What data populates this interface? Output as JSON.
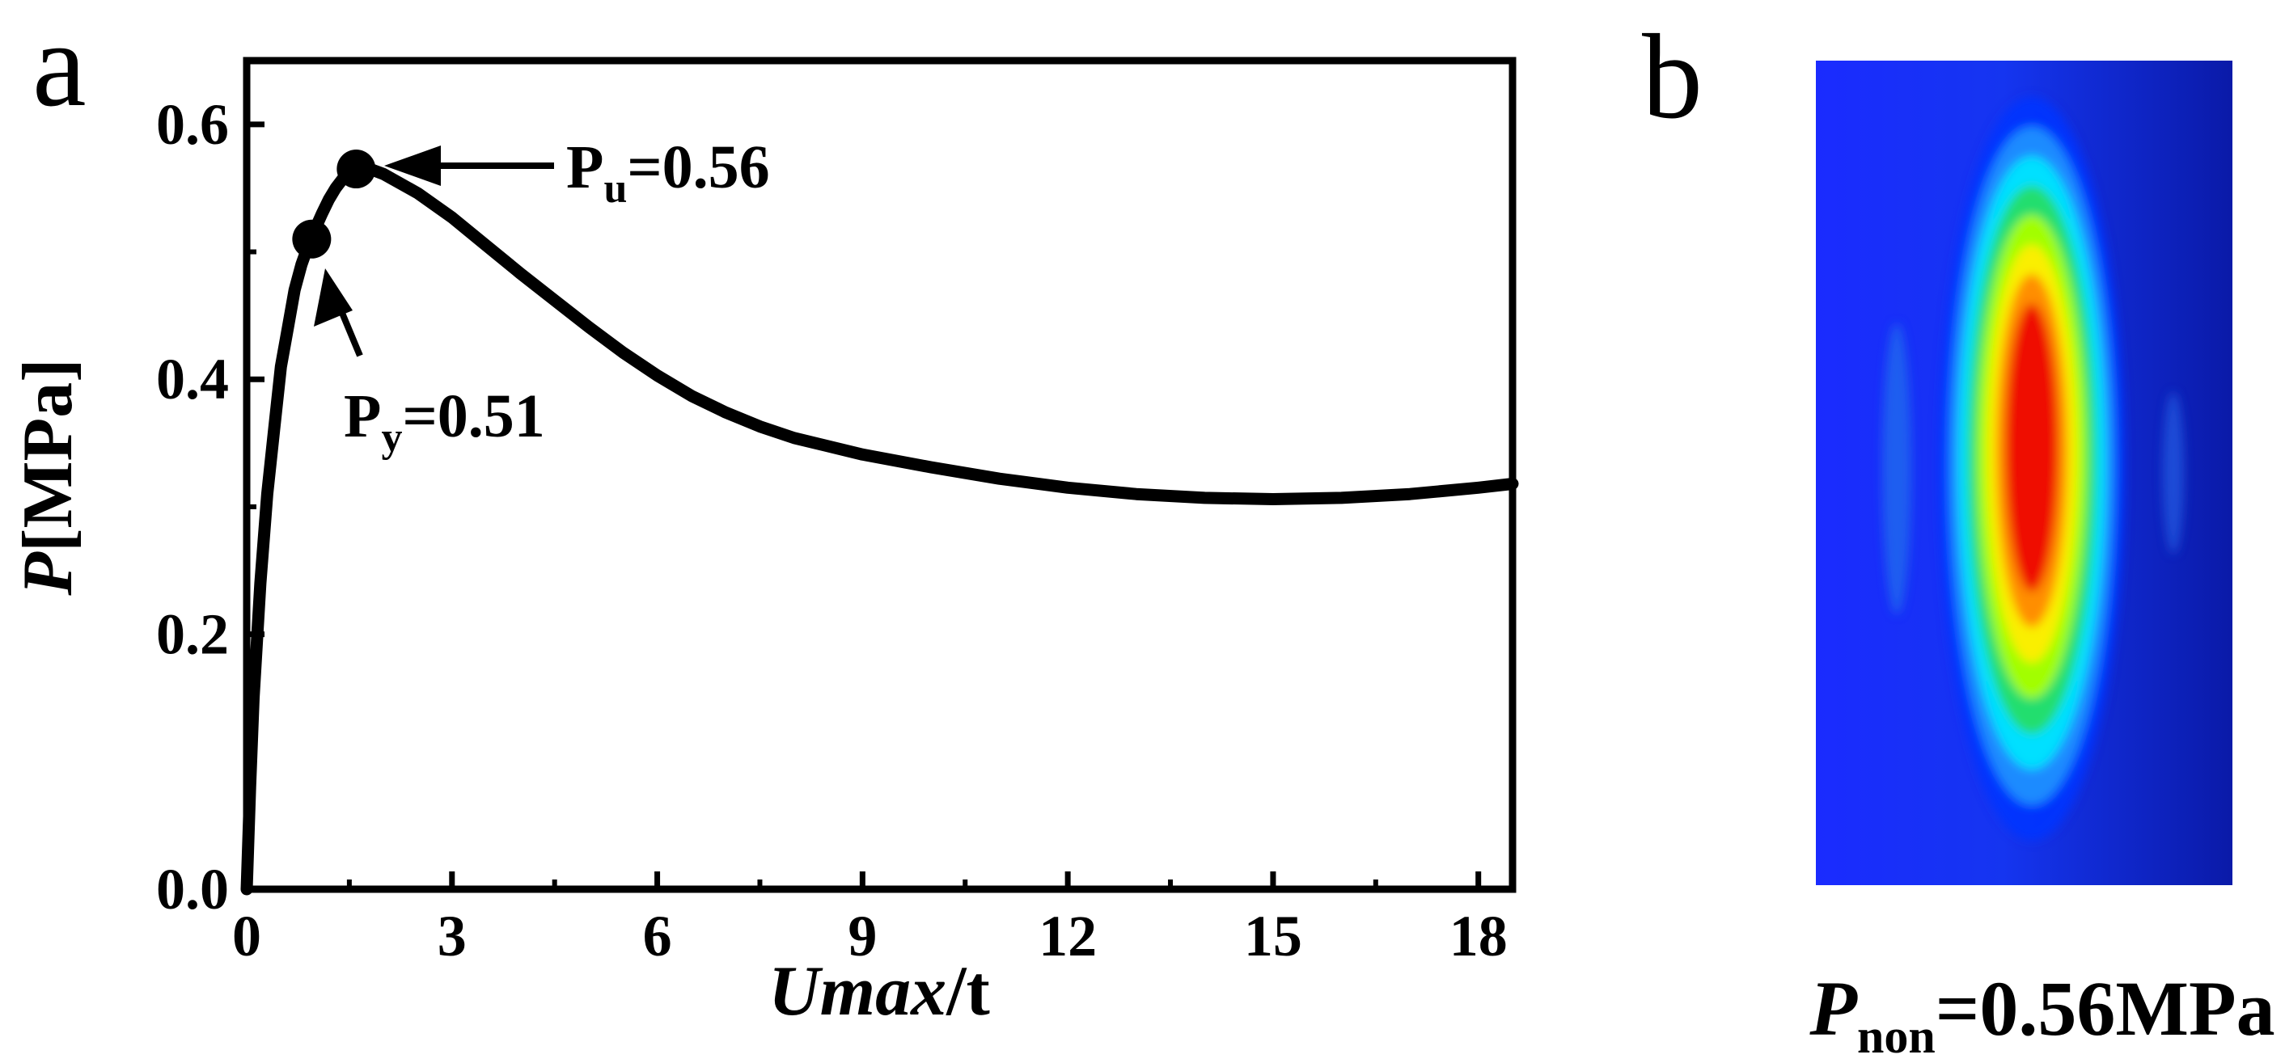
{
  "panel_a_letter": "a",
  "panel_b_letter": "b",
  "chart_data": [
    {
      "type": "line",
      "title": "",
      "xlabel": {
        "italic": "Umax",
        "rest": "/t"
      },
      "ylabel": {
        "italic": "P",
        "rest": "[MPa]"
      },
      "xlim": [
        0,
        18.5
      ],
      "ylim": [
        0,
        0.65
      ],
      "xticks": [
        0,
        3,
        6,
        9,
        12,
        15,
        18
      ],
      "xtick_labels": [
        "0",
        "3",
        "6",
        "9",
        "12",
        "15",
        "18"
      ],
      "yticks": [
        0,
        0.2,
        0.4,
        0.6
      ],
      "ytick_labels": [
        "0.0",
        "0.2",
        "0.4",
        "0.6"
      ],
      "grid": false,
      "series": [
        {
          "color": "#000000",
          "points": [
            [
              0.0,
              0.0
            ],
            [
              0.05,
              0.08
            ],
            [
              0.1,
              0.15
            ],
            [
              0.2,
              0.24
            ],
            [
              0.3,
              0.31
            ],
            [
              0.4,
              0.36
            ],
            [
              0.5,
              0.41
            ],
            [
              0.6,
              0.44
            ],
            [
              0.7,
              0.47
            ],
            [
              0.8,
              0.49
            ],
            [
              0.9,
              0.505
            ],
            [
              1.0,
              0.518
            ],
            [
              1.1,
              0.53
            ],
            [
              1.2,
              0.541
            ],
            [
              1.3,
              0.55
            ],
            [
              1.4,
              0.557
            ],
            [
              1.5,
              0.562
            ],
            [
              1.6,
              0.565
            ],
            [
              1.7,
              0.566
            ],
            [
              1.8,
              0.565
            ],
            [
              2.0,
              0.561
            ],
            [
              2.5,
              0.546
            ],
            [
              3.0,
              0.527
            ],
            [
              3.5,
              0.505
            ],
            [
              4.0,
              0.483
            ],
            [
              4.5,
              0.462
            ],
            [
              5.0,
              0.441
            ],
            [
              5.5,
              0.421
            ],
            [
              6.0,
              0.403
            ],
            [
              6.5,
              0.387
            ],
            [
              7.0,
              0.374
            ],
            [
              7.5,
              0.363
            ],
            [
              8.0,
              0.354
            ],
            [
              9.0,
              0.341
            ],
            [
              10.0,
              0.331
            ],
            [
              11.0,
              0.322
            ],
            [
              12.0,
              0.315
            ],
            [
              13.0,
              0.31
            ],
            [
              14.0,
              0.307
            ],
            [
              15.0,
              0.306
            ],
            [
              16.0,
              0.307
            ],
            [
              17.0,
              0.31
            ],
            [
              18.0,
              0.315
            ],
            [
              18.5,
              0.318
            ]
          ]
        }
      ],
      "markers": [
        {
          "name": "yield-point",
          "x": 0.95,
          "y": 0.51
        },
        {
          "name": "ultimate-point",
          "x": 1.6,
          "y": 0.565
        }
      ],
      "annotations": [
        {
          "name": "pu-annotation",
          "symbol": "P",
          "sub": "u",
          "value": "=0.56"
        },
        {
          "name": "py-annotation",
          "symbol": "P",
          "sub": "y",
          "value": "=0.51"
        }
      ]
    },
    {
      "type": "heatmap",
      "colormap": [
        "#0033ff",
        "#1e90ff",
        "#00e5ff",
        "#22dd66",
        "#aaff00",
        "#ffee00",
        "#ff8800",
        "#ee0000"
      ],
      "caption": {
        "symbol": "P",
        "sub": "non",
        "value": "=0.56MPa"
      }
    }
  ]
}
